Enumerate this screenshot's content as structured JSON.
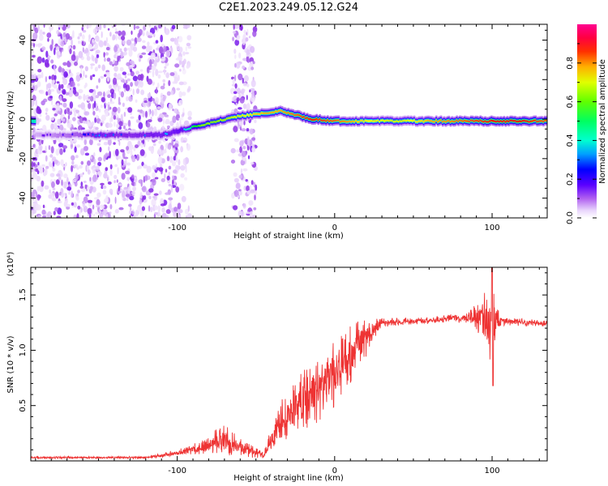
{
  "title": "C2E1.2023.249.05.12.G24",
  "chart_data": [
    {
      "type": "heatmap",
      "xlabel": "Height of straight line (km)",
      "ylabel": "Frequency (Hz)",
      "xlim": [
        -193,
        135
      ],
      "ylim": [
        -50,
        48
      ],
      "x_ticks": [
        -100,
        0,
        100
      ],
      "x_tick_labels": [
        "-100",
        "0",
        "100"
      ],
      "y_ticks": [
        -40,
        -20,
        0,
        20,
        40
      ],
      "y_tick_labels": [
        "-40",
        "-20",
        "0",
        "20",
        "40"
      ],
      "colorbar": {
        "label": "Normalized spectral amplitude",
        "range": [
          0,
          1
        ],
        "ticks": [
          0.0,
          0.2,
          0.4,
          0.6,
          0.8
        ],
        "tick_labels": [
          "0.0",
          "0.2",
          "0.4",
          "0.6",
          "0.8"
        ],
        "colormap": [
          "#ffffff",
          "#d8b4f8",
          "#8a2be2",
          "#5a00ff",
          "#0000ff",
          "#00c8ff",
          "#00ffb0",
          "#00ff00",
          "#aaff00",
          "#ffff00",
          "#ff8c00",
          "#ff0000",
          "#ff0090"
        ]
      },
      "ridge": [
        {
          "x": -190,
          "freq": -8,
          "amp": 0.15
        },
        {
          "x": -160,
          "freq": -8,
          "amp": 0.25
        },
        {
          "x": -150,
          "freq": -8,
          "amp": 0.35
        },
        {
          "x": -135,
          "freq": -8,
          "amp": 0.3
        },
        {
          "x": -110,
          "freq": -8,
          "amp": 0.35
        },
        {
          "x": -95,
          "freq": -5,
          "amp": 0.4
        },
        {
          "x": -85,
          "freq": -3,
          "amp": 0.6
        },
        {
          "x": -75,
          "freq": -1,
          "amp": 0.6
        },
        {
          "x": -65,
          "freq": 1,
          "amp": 0.65
        },
        {
          "x": -55,
          "freq": 2,
          "amp": 0.7
        },
        {
          "x": -45,
          "freq": 3,
          "amp": 0.75
        },
        {
          "x": -35,
          "freq": 4,
          "amp": 0.75
        },
        {
          "x": -25,
          "freq": 2,
          "amp": 0.8
        },
        {
          "x": -15,
          "freq": 0,
          "amp": 0.85
        },
        {
          "x": 0,
          "freq": -1,
          "amp": 0.8
        },
        {
          "x": 20,
          "freq": -1,
          "amp": 0.7
        },
        {
          "x": 40,
          "freq": -1,
          "amp": 0.65
        },
        {
          "x": 60,
          "freq": -1,
          "amp": 0.75
        },
        {
          "x": 80,
          "freq": -1,
          "amp": 0.8
        },
        {
          "x": 100,
          "freq": -1,
          "amp": 0.85
        },
        {
          "x": 120,
          "freq": -1,
          "amp": 0.85
        },
        {
          "x": 135,
          "freq": -1,
          "amp": 0.8
        }
      ],
      "noise_regions": [
        {
          "x_range": [
            -193,
            -98
          ],
          "density": "high"
        },
        {
          "x_range": [
            -98,
            -92
          ],
          "density": "low"
        },
        {
          "x_range": [
            -65,
            -50
          ],
          "density": "high"
        }
      ]
    },
    {
      "type": "line",
      "xlabel": "Height of straight line (km)",
      "ylabel": "SNR (10 * v/v)",
      "y_multiplier_label": "(x10⁴)",
      "xlim": [
        -193,
        135
      ],
      "ylim": [
        0.0,
        1.75
      ],
      "x_ticks": [
        -100,
        0,
        100
      ],
      "x_tick_labels": [
        "-100",
        "0",
        "100"
      ],
      "y_ticks": [
        0.5,
        1.0,
        1.5
      ],
      "y_tick_labels": [
        "0.5",
        "1.0",
        "1.5"
      ],
      "line_color": "#ee3333",
      "series_envelope": [
        {
          "x": -193,
          "mean": 0.03,
          "noise": 0.01
        },
        {
          "x": -120,
          "mean": 0.03,
          "noise": 0.01
        },
        {
          "x": -100,
          "mean": 0.07,
          "noise": 0.03
        },
        {
          "x": -85,
          "mean": 0.12,
          "noise": 0.06
        },
        {
          "x": -70,
          "mean": 0.2,
          "noise": 0.15
        },
        {
          "x": -60,
          "mean": 0.12,
          "noise": 0.08
        },
        {
          "x": -45,
          "mean": 0.05,
          "noise": 0.03
        },
        {
          "x": -35,
          "mean": 0.35,
          "noise": 0.2
        },
        {
          "x": -15,
          "mean": 0.6,
          "noise": 0.3
        },
        {
          "x": 5,
          "mean": 0.85,
          "noise": 0.3
        },
        {
          "x": 15,
          "mean": 1.05,
          "noise": 0.25
        },
        {
          "x": 30,
          "mean": 1.25,
          "noise": 0.04
        },
        {
          "x": 60,
          "mean": 1.27,
          "noise": 0.03
        },
        {
          "x": 85,
          "mean": 1.3,
          "noise": 0.05
        },
        {
          "x": 95,
          "mean": 1.3,
          "noise": 0.25
        },
        {
          "x": 100,
          "mean": 1.2,
          "noise": 0.5
        },
        {
          "x": 105,
          "mean": 1.26,
          "noise": 0.04
        },
        {
          "x": 135,
          "mean": 1.24,
          "noise": 0.03
        }
      ]
    }
  ]
}
